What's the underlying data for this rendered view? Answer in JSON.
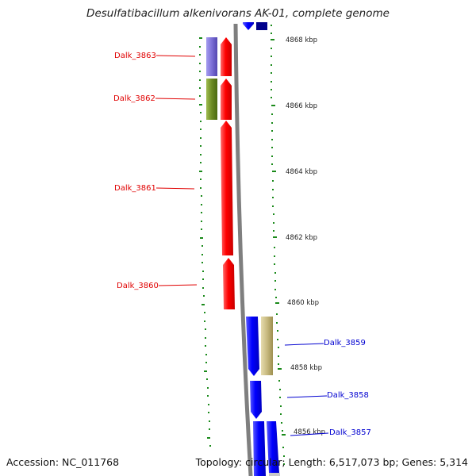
{
  "title": "Desulfatibacillum alkenivorans AK-01, complete genome",
  "accession": "Accession: NC_011768",
  "summary": "Topology: circular; Length: 6,517,073 bp; Genes: 5,314",
  "colors": {
    "backbone": "#8a8a8a",
    "tick": "#1a8a1a",
    "reverse_gene": "#ff0000",
    "forward_gene": "#0000ff",
    "reverse_label": "#e00000",
    "forward_label": "#0000d0"
  },
  "scale_labels": [
    "4868 kbp",
    "4866 kbp",
    "4864 kbp",
    "4862 kbp",
    "4860 kbp",
    "4858 kbp",
    "4856 kbp"
  ],
  "genes": [
    {
      "label": "Dalk_3863",
      "strand": "reverse"
    },
    {
      "label": "Dalk_3862",
      "strand": "reverse"
    },
    {
      "label": "Dalk_3861",
      "strand": "reverse"
    },
    {
      "label": "Dalk_3860",
      "strand": "reverse"
    },
    {
      "label": "Dalk_3859",
      "strand": "forward"
    },
    {
      "label": "Dalk_3858",
      "strand": "forward"
    },
    {
      "label": "Dalk_3857",
      "strand": "forward"
    }
  ],
  "feature_colors": {
    "cog_1": "#7b6fd6",
    "cog_2": "#6b8a22",
    "cog_3": "#c8ba80",
    "dark": "#00008b"
  }
}
